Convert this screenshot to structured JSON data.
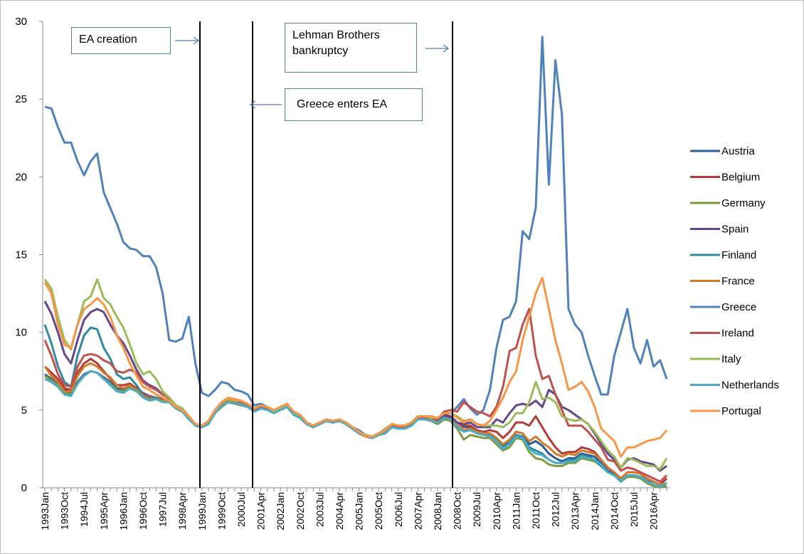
{
  "chart_data": {
    "type": "line",
    "annotations": [
      "EA creation",
      "Lehman Brothers bankruptcy",
      "Greece enters EA"
    ],
    "ylim": [
      0,
      30
    ],
    "yticks": [
      0,
      5,
      10,
      15,
      20,
      25,
      30
    ],
    "legend": "right",
    "categories": [
      "1993Jan",
      null,
      null,
      "1993Oct",
      null,
      null,
      "1994Jul",
      null,
      null,
      "1995Apr",
      null,
      null,
      "1996Jan",
      null,
      null,
      "1996Oct",
      null,
      null,
      "1997Jul",
      null,
      null,
      "1998Apr",
      null,
      null,
      "1999Jan",
      null,
      null,
      "1999Oct",
      null,
      null,
      "2000Jul",
      null,
      null,
      "2001Apr",
      null,
      null,
      "2002Jan",
      null,
      null,
      "2002Oct",
      null,
      null,
      "2003Jul",
      null,
      null,
      "2004Apr",
      null,
      null,
      "2005Jan",
      null,
      null,
      "2005Oct",
      null,
      null,
      "2006Jul",
      null,
      null,
      "2007Apr",
      null,
      null,
      "2008Jan",
      null,
      null,
      "2008Oct",
      null,
      null,
      "2009Jul",
      null,
      null,
      "2010Apr",
      null,
      null,
      "2011Jan",
      null,
      null,
      "2011Oct",
      null,
      null,
      "2012Jul",
      null,
      null,
      "2013Apr",
      null,
      null,
      "2014Jan",
      null,
      null,
      "2014Oct",
      null,
      null,
      "2015Jul",
      null,
      null,
      "2016Apr",
      null,
      null
    ],
    "series": [
      {
        "name": "Austria",
        "color": "#2f5b95",
        "values": [
          7.3,
          7.0,
          6.7,
          6.3,
          6.1,
          6.8,
          7.3,
          7.5,
          7.4,
          7.1,
          6.8,
          6.4,
          6.3,
          6.6,
          6.3,
          6.0,
          5.8,
          5.8,
          5.6,
          5.6,
          5.2,
          5.0,
          4.5,
          4.0,
          3.9,
          4.2,
          4.9,
          5.3,
          5.6,
          5.5,
          5.4,
          5.2,
          5.0,
          5.2,
          5.1,
          4.9,
          5.1,
          5.3,
          4.8,
          4.5,
          4.1,
          3.9,
          4.1,
          4.3,
          4.2,
          4.3,
          4.1,
          3.8,
          3.5,
          3.3,
          3.2,
          3.4,
          3.6,
          4.0,
          3.9,
          3.9,
          4.1,
          4.5,
          4.5,
          4.4,
          4.3,
          4.6,
          4.5,
          4.2,
          3.9,
          3.9,
          3.7,
          3.5,
          3.5,
          3.2,
          2.7,
          3.1,
          3.6,
          3.5,
          2.8,
          3.0,
          2.7,
          2.2,
          1.9,
          1.7,
          1.9,
          1.9,
          2.2,
          2.1,
          2.0,
          1.6,
          1.1,
          0.9,
          0.4,
          0.8,
          0.8,
          0.7,
          0.5,
          0.2,
          0.1,
          0.3
        ]
      },
      {
        "name": "Belgium",
        "color": "#b53a36",
        "values": [
          7.8,
          7.4,
          7.0,
          6.4,
          6.3,
          7.4,
          8.0,
          8.3,
          8.0,
          7.5,
          7.0,
          6.6,
          6.6,
          6.7,
          6.4,
          6.1,
          5.9,
          5.8,
          5.7,
          5.7,
          5.2,
          5.0,
          4.5,
          4.0,
          3.9,
          4.2,
          4.9,
          5.4,
          5.6,
          5.5,
          5.4,
          5.2,
          5.0,
          5.2,
          5.1,
          4.9,
          5.1,
          5.3,
          4.7,
          4.5,
          4.1,
          3.9,
          4.1,
          4.3,
          4.2,
          4.3,
          4.1,
          3.8,
          3.5,
          3.3,
          3.2,
          3.4,
          3.6,
          4.0,
          3.9,
          3.9,
          4.1,
          4.5,
          4.5,
          4.4,
          4.3,
          4.6,
          4.5,
          4.2,
          4.0,
          4.0,
          3.7,
          3.6,
          3.7,
          3.6,
          3.2,
          3.6,
          4.2,
          4.2,
          4.0,
          4.6,
          3.9,
          3.2,
          2.6,
          2.2,
          2.3,
          2.3,
          2.6,
          2.5,
          2.3,
          1.8,
          1.3,
          1.0,
          0.6,
          1.0,
          1.0,
          0.9,
          0.6,
          0.4,
          0.2,
          0.6
        ]
      },
      {
        "name": "Germany",
        "color": "#7f9a3e",
        "values": [
          7.2,
          6.9,
          6.6,
          6.1,
          6.0,
          6.7,
          7.2,
          7.5,
          7.4,
          7.0,
          6.7,
          6.3,
          6.2,
          6.5,
          6.3,
          6.0,
          5.8,
          5.7,
          5.6,
          5.6,
          5.2,
          5.0,
          4.5,
          4.0,
          3.9,
          4.1,
          4.8,
          5.2,
          5.5,
          5.4,
          5.3,
          5.2,
          4.9,
          5.1,
          5.0,
          4.8,
          5.0,
          5.2,
          4.7,
          4.5,
          4.1,
          3.9,
          4.1,
          4.3,
          4.2,
          4.3,
          4.1,
          3.8,
          3.6,
          3.3,
          3.2,
          3.4,
          3.5,
          3.9,
          3.8,
          3.8,
          4.0,
          4.4,
          4.4,
          4.3,
          4.1,
          4.4,
          4.3,
          3.8,
          3.1,
          3.4,
          3.3,
          3.2,
          3.2,
          2.8,
          2.4,
          2.6,
          3.2,
          3.1,
          2.3,
          1.9,
          1.8,
          1.5,
          1.4,
          1.4,
          1.6,
          1.6,
          1.9,
          1.8,
          1.7,
          1.4,
          1.0,
          0.8,
          0.4,
          0.7,
          0.7,
          0.6,
          0.3,
          0.1,
          0.05,
          0.1
        ]
      },
      {
        "name": "Spain",
        "color": "#63478a",
        "values": [
          12.0,
          11.2,
          10.0,
          8.6,
          8.0,
          9.5,
          10.8,
          11.3,
          11.5,
          11.3,
          10.5,
          9.8,
          9.3,
          8.5,
          7.6,
          6.9,
          6.6,
          6.4,
          6.0,
          5.8,
          5.3,
          5.1,
          4.6,
          4.1,
          4.0,
          4.3,
          5.0,
          5.5,
          5.6,
          5.5,
          5.4,
          5.3,
          5.0,
          5.2,
          5.1,
          4.9,
          5.1,
          5.3,
          4.8,
          4.6,
          4.1,
          3.9,
          4.1,
          4.3,
          4.2,
          4.3,
          4.1,
          3.8,
          3.5,
          3.3,
          3.2,
          3.4,
          3.6,
          4.0,
          3.9,
          3.9,
          4.1,
          4.5,
          4.5,
          4.4,
          4.3,
          4.7,
          4.6,
          4.2,
          4.1,
          4.2,
          3.9,
          3.9,
          3.9,
          4.4,
          4.2,
          4.8,
          5.3,
          5.4,
          5.3,
          5.6,
          5.2,
          6.3,
          6.0,
          5.2,
          5.0,
          4.7,
          4.4,
          4.1,
          3.5,
          2.8,
          2.2,
          1.8,
          1.3,
          1.8,
          1.9,
          1.7,
          1.6,
          1.5,
          1.1,
          1.4
        ]
      },
      {
        "name": "Finland",
        "color": "#2e8aa5",
        "values": [
          10.5,
          9.3,
          7.8,
          6.8,
          6.5,
          8.5,
          9.8,
          10.3,
          10.2,
          9.0,
          8.3,
          7.3,
          7.0,
          7.1,
          6.6,
          6.0,
          5.8,
          5.8,
          5.6,
          5.6,
          5.2,
          5.0,
          4.5,
          4.0,
          3.9,
          4.2,
          4.9,
          5.4,
          5.6,
          5.5,
          5.4,
          5.2,
          5.0,
          5.2,
          5.1,
          4.9,
          5.1,
          5.3,
          4.8,
          4.5,
          4.1,
          3.9,
          4.1,
          4.3,
          4.2,
          4.3,
          4.1,
          3.8,
          3.5,
          3.3,
          3.2,
          3.4,
          3.6,
          4.0,
          3.9,
          3.9,
          4.1,
          4.5,
          4.5,
          4.4,
          4.2,
          4.5,
          4.4,
          4.0,
          3.7,
          3.8,
          3.6,
          3.5,
          3.4,
          3.1,
          2.6,
          2.9,
          3.4,
          3.3,
          2.6,
          2.4,
          2.2,
          1.8,
          1.6,
          1.6,
          1.8,
          1.8,
          2.1,
          2.0,
          1.8,
          1.4,
          1.0,
          0.8,
          0.4,
          0.8,
          0.8,
          0.7,
          0.5,
          0.2,
          0.1,
          0.3
        ]
      },
      {
        "name": "France",
        "color": "#d07a2a",
        "values": [
          7.8,
          7.2,
          6.8,
          6.2,
          6.2,
          7.2,
          7.8,
          8.0,
          7.8,
          7.4,
          7.1,
          6.6,
          6.4,
          6.6,
          6.3,
          5.9,
          5.7,
          5.7,
          5.6,
          5.6,
          5.1,
          4.9,
          4.5,
          4.0,
          3.9,
          4.2,
          4.9,
          5.3,
          5.6,
          5.5,
          5.4,
          5.2,
          5.0,
          5.2,
          5.1,
          4.9,
          5.1,
          5.3,
          4.7,
          4.5,
          4.1,
          3.9,
          4.1,
          4.3,
          4.2,
          4.3,
          4.1,
          3.8,
          3.5,
          3.3,
          3.2,
          3.4,
          3.6,
          4.0,
          3.9,
          3.9,
          4.1,
          4.5,
          4.5,
          4.4,
          4.2,
          4.5,
          4.4,
          4.0,
          3.7,
          3.8,
          3.6,
          3.5,
          3.5,
          3.2,
          2.8,
          3.1,
          3.6,
          3.5,
          3.0,
          3.3,
          2.9,
          2.6,
          2.2,
          2.0,
          2.2,
          2.1,
          2.4,
          2.3,
          2.2,
          1.8,
          1.3,
          1.0,
          0.6,
          1.0,
          1.0,
          0.9,
          0.6,
          0.4,
          0.2,
          0.3
        ]
      },
      {
        "name": "Greece",
        "color": "#4f81bd",
        "values": [
          24.5,
          24.4,
          23.2,
          22.2,
          22.2,
          21.0,
          20.1,
          21.0,
          21.5,
          19.0,
          18.0,
          17.0,
          15.8,
          15.4,
          15.3,
          14.9,
          14.9,
          14.2,
          12.5,
          9.5,
          9.4,
          9.6,
          11.0,
          8.0,
          6.1,
          5.9,
          6.3,
          6.8,
          6.7,
          6.3,
          6.2,
          6.0,
          5.3,
          5.4,
          5.2,
          5.0,
          5.2,
          5.4,
          4.8,
          4.6,
          4.2,
          4.0,
          4.2,
          4.4,
          4.3,
          4.4,
          4.2,
          3.9,
          3.7,
          3.4,
          3.3,
          3.5,
          3.7,
          4.1,
          4.0,
          4.0,
          4.2,
          4.6,
          4.6,
          4.5,
          4.4,
          4.8,
          4.8,
          5.2,
          5.7,
          5.1,
          4.7,
          5.0,
          6.3,
          9.0,
          10.8,
          11.0,
          12.0,
          16.5,
          16.0,
          18.0,
          29.0,
          19.5,
          27.5,
          24.0,
          11.5,
          10.5,
          10.0,
          8.5,
          7.2,
          6.0,
          6.0,
          8.5,
          10.0,
          11.5,
          9.0,
          8.0,
          9.5,
          7.8,
          8.2,
          7.0
        ]
      },
      {
        "name": "Ireland",
        "color": "#c0504d",
        "values": [
          9.5,
          8.5,
          7.3,
          6.6,
          6.5,
          7.8,
          8.5,
          8.6,
          8.5,
          8.2,
          8.0,
          7.5,
          7.4,
          7.6,
          7.4,
          6.8,
          6.5,
          6.3,
          6.0,
          5.8,
          5.3,
          5.1,
          4.6,
          4.1,
          4.0,
          4.3,
          5.0,
          5.5,
          5.7,
          5.6,
          5.5,
          5.3,
          5.0,
          5.2,
          5.1,
          4.9,
          5.1,
          5.3,
          4.8,
          4.6,
          4.2,
          4.0,
          4.2,
          4.3,
          4.2,
          4.3,
          4.1,
          3.8,
          3.5,
          3.3,
          3.2,
          3.4,
          3.6,
          4.0,
          3.9,
          3.9,
          4.1,
          4.5,
          4.5,
          4.5,
          4.4,
          4.9,
          5.0,
          4.9,
          5.5,
          5.2,
          4.9,
          4.8,
          4.6,
          5.2,
          6.5,
          8.8,
          9.0,
          10.5,
          11.5,
          8.5,
          7.0,
          7.2,
          6.0,
          5.0,
          4.0,
          4.0,
          4.0,
          3.6,
          3.1,
          2.6,
          1.8,
          1.7,
          1.1,
          1.3,
          1.2,
          1.0,
          0.8,
          0.6,
          0.4,
          0.8
        ]
      },
      {
        "name": "Italy",
        "color": "#9bbb59",
        "values": [
          13.4,
          12.8,
          11.0,
          9.5,
          8.9,
          10.5,
          12.0,
          12.3,
          13.4,
          12.2,
          11.8,
          11.0,
          10.3,
          9.2,
          8.0,
          7.3,
          7.5,
          7.0,
          6.2,
          5.8,
          5.3,
          5.1,
          4.6,
          4.1,
          4.0,
          4.3,
          5.0,
          5.5,
          5.7,
          5.6,
          5.6,
          5.4,
          5.1,
          5.3,
          5.2,
          4.9,
          5.1,
          5.3,
          4.8,
          4.6,
          4.2,
          4.0,
          4.2,
          4.4,
          4.3,
          4.4,
          4.2,
          3.9,
          3.6,
          3.4,
          3.3,
          3.5,
          3.8,
          4.1,
          4.0,
          4.0,
          4.2,
          4.6,
          4.6,
          4.5,
          4.5,
          4.8,
          4.8,
          4.6,
          4.3,
          4.4,
          4.1,
          4.0,
          4.0,
          4.0,
          3.9,
          4.2,
          4.8,
          4.8,
          5.5,
          6.8,
          5.7,
          5.8,
          5.5,
          4.6,
          4.4,
          4.3,
          4.4,
          4.1,
          3.6,
          3.0,
          2.4,
          2.0,
          1.3,
          1.9,
          1.8,
          1.6,
          1.4,
          1.4,
          1.2,
          1.9
        ]
      },
      {
        "name": "Netherlands",
        "color": "#4bacc6",
        "values": [
          7.0,
          6.8,
          6.5,
          6.0,
          5.9,
          6.7,
          7.2,
          7.5,
          7.4,
          7.0,
          6.6,
          6.2,
          6.1,
          6.4,
          6.2,
          5.8,
          5.6,
          5.7,
          5.5,
          5.5,
          5.1,
          4.9,
          4.4,
          4.0,
          3.9,
          4.1,
          4.8,
          5.3,
          5.5,
          5.4,
          5.4,
          5.2,
          4.9,
          5.1,
          5.0,
          4.8,
          5.0,
          5.2,
          4.7,
          4.5,
          4.1,
          3.9,
          4.1,
          4.3,
          4.2,
          4.3,
          4.1,
          3.8,
          3.5,
          3.3,
          3.2,
          3.4,
          3.5,
          3.9,
          3.8,
          3.8,
          4.0,
          4.4,
          4.4,
          4.3,
          4.2,
          4.5,
          4.4,
          3.9,
          3.6,
          3.7,
          3.5,
          3.4,
          3.3,
          3.0,
          2.5,
          2.8,
          3.3,
          3.2,
          2.5,
          2.2,
          2.1,
          1.8,
          1.6,
          1.6,
          1.7,
          1.7,
          2.0,
          1.9,
          1.8,
          1.5,
          1.0,
          0.8,
          0.4,
          0.8,
          0.8,
          0.7,
          0.4,
          0.2,
          0.1,
          0.3
        ]
      },
      {
        "name": "Portugal",
        "color": "#f79646",
        "values": [
          13.2,
          12.5,
          10.5,
          9.2,
          9.0,
          10.5,
          11.5,
          11.8,
          12.2,
          11.8,
          11.0,
          9.8,
          9.0,
          8.0,
          7.2,
          6.5,
          6.3,
          6.0,
          5.8,
          5.6,
          5.2,
          5.0,
          4.6,
          4.1,
          4.0,
          4.3,
          5.0,
          5.5,
          5.8,
          5.7,
          5.6,
          5.4,
          5.1,
          5.3,
          5.2,
          5.0,
          5.2,
          5.4,
          4.9,
          4.7,
          4.2,
          4.0,
          4.2,
          4.4,
          4.3,
          4.4,
          4.2,
          3.9,
          3.6,
          3.3,
          3.3,
          3.5,
          3.7,
          4.1,
          4.0,
          4.0,
          4.2,
          4.6,
          4.6,
          4.6,
          4.5,
          4.8,
          4.8,
          4.5,
          4.2,
          4.4,
          4.1,
          4.0,
          4.3,
          5.0,
          5.8,
          6.8,
          7.5,
          9.5,
          11.0,
          12.5,
          13.5,
          11.5,
          9.5,
          8.0,
          6.3,
          6.5,
          6.8,
          6.2,
          5.2,
          3.8,
          3.4,
          3.0,
          2.0,
          2.6,
          2.6,
          2.8,
          3.0,
          3.1,
          3.2,
          3.7
        ]
      }
    ]
  }
}
